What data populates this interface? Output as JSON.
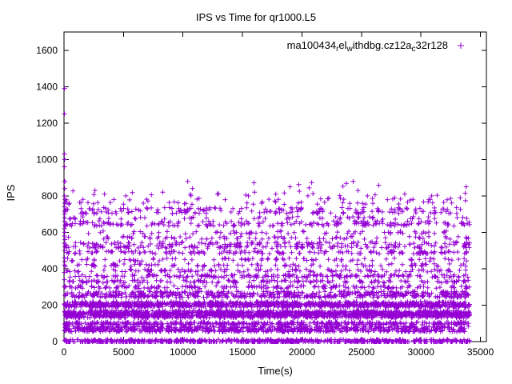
{
  "chart_data": {
    "type": "scatter",
    "title": "IPS vs Time for qr1000.L5",
    "xlabel": "Time(s)",
    "ylabel": "IPS",
    "xlim": [
      0,
      35500
    ],
    "ylim": [
      0,
      1700
    ],
    "xticks": [
      0,
      5000,
      10000,
      15000,
      20000,
      25000,
      30000,
      35000
    ],
    "yticks": [
      0,
      200,
      400,
      600,
      800,
      1000,
      1200,
      1400,
      1600
    ],
    "grid": false,
    "marker": "plus",
    "marker_color": "#9400d3",
    "legend_position": "top-right-inside",
    "legend_label_plain": "ma100434_rel_withdbg.cz12a_c32r128",
    "legend_segments": [
      {
        "text": "ma100434",
        "sub": false
      },
      {
        "text": "r",
        "sub": true
      },
      {
        "text": "el",
        "sub": false
      },
      {
        "text": "w",
        "sub": true
      },
      {
        "text": "ithdbg.cz12a",
        "sub": false
      },
      {
        "text": "c",
        "sub": true
      },
      {
        "text": "32r128",
        "sub": false
      }
    ],
    "seed": 7,
    "x_data_range": [
      30,
      34100
    ],
    "bands_note": "dense horizontal bands of samples; y = IPS level, count = approx number of samples across full time range, jitter = +/- spread in IPS",
    "bands": [
      {
        "y": 0,
        "count": 650,
        "jitter": 12
      },
      {
        "y": 62,
        "count": 420,
        "jitter": 8
      },
      {
        "y": 78,
        "count": 300,
        "jitter": 8
      },
      {
        "y": 100,
        "count": 380,
        "jitter": 8
      },
      {
        "y": 140,
        "count": 520,
        "jitter": 10
      },
      {
        "y": 152,
        "count": 500,
        "jitter": 10
      },
      {
        "y": 163,
        "count": 380,
        "jitter": 8
      },
      {
        "y": 198,
        "count": 580,
        "jitter": 10
      },
      {
        "y": 210,
        "count": 420,
        "jitter": 10
      },
      {
        "y": 250,
        "count": 300,
        "jitter": 8
      },
      {
        "y": 268,
        "count": 220,
        "jitter": 8
      },
      {
        "y": 300,
        "count": 170,
        "jitter": 8
      },
      {
        "y": 330,
        "count": 150,
        "jitter": 8
      },
      {
        "y": 360,
        "count": 190,
        "jitter": 8
      },
      {
        "y": 390,
        "count": 110,
        "jitter": 8
      },
      {
        "y": 420,
        "count": 95,
        "jitter": 8
      },
      {
        "y": 450,
        "count": 85,
        "jitter": 8
      },
      {
        "y": 490,
        "count": 150,
        "jitter": 8
      },
      {
        "y": 520,
        "count": 130,
        "jitter": 8
      },
      {
        "y": 540,
        "count": 120,
        "jitter": 8
      },
      {
        "y": 570,
        "count": 75,
        "jitter": 8
      },
      {
        "y": 600,
        "count": 65,
        "jitter": 8
      },
      {
        "y": 642,
        "count": 115,
        "jitter": 8
      },
      {
        "y": 655,
        "count": 75,
        "jitter": 8
      },
      {
        "y": 680,
        "count": 55,
        "jitter": 8
      },
      {
        "y": 710,
        "count": 95,
        "jitter": 8
      },
      {
        "y": 728,
        "count": 85,
        "jitter": 8
      },
      {
        "y": 760,
        "count": 40,
        "jitter": 8
      },
      {
        "y": 780,
        "count": 28,
        "jitter": 8
      },
      {
        "y": 808,
        "count": 14,
        "jitter": 10
      },
      {
        "y": 850,
        "count": 10,
        "jitter": 35
      }
    ],
    "extra_points": [
      [
        40,
        1390
      ],
      [
        40,
        1250
      ],
      [
        40,
        1030
      ],
      [
        60,
        1000
      ],
      [
        40,
        960
      ],
      [
        80,
        880
      ],
      [
        40,
        880
      ],
      [
        60,
        840
      ],
      [
        40,
        800
      ],
      [
        80,
        780
      ],
      [
        60,
        760
      ],
      [
        40,
        740
      ],
      [
        80,
        720
      ],
      [
        40,
        700
      ],
      [
        60,
        680
      ],
      [
        40,
        660
      ],
      [
        80,
        640
      ],
      [
        40,
        620
      ],
      [
        60,
        600
      ],
      [
        40,
        580
      ],
      [
        80,
        560
      ],
      [
        40,
        540
      ],
      [
        60,
        520
      ],
      [
        40,
        500
      ],
      [
        40,
        460
      ],
      [
        60,
        440
      ],
      [
        40,
        420
      ],
      [
        40,
        380
      ],
      [
        40,
        340
      ],
      [
        40,
        300
      ],
      [
        2600,
        830
      ],
      [
        3400,
        810
      ],
      [
        5200,
        800
      ],
      [
        8300,
        820
      ],
      [
        10400,
        880
      ],
      [
        10800,
        840
      ],
      [
        12900,
        810
      ],
      [
        15500,
        800
      ],
      [
        17800,
        810
      ],
      [
        19000,
        850
      ],
      [
        20500,
        800
      ],
      [
        24300,
        880
      ],
      [
        24700,
        830
      ],
      [
        25500,
        800
      ],
      [
        27800,
        790
      ],
      [
        30900,
        800
      ],
      [
        33300,
        790
      ],
      [
        33800,
        850
      ]
    ]
  }
}
